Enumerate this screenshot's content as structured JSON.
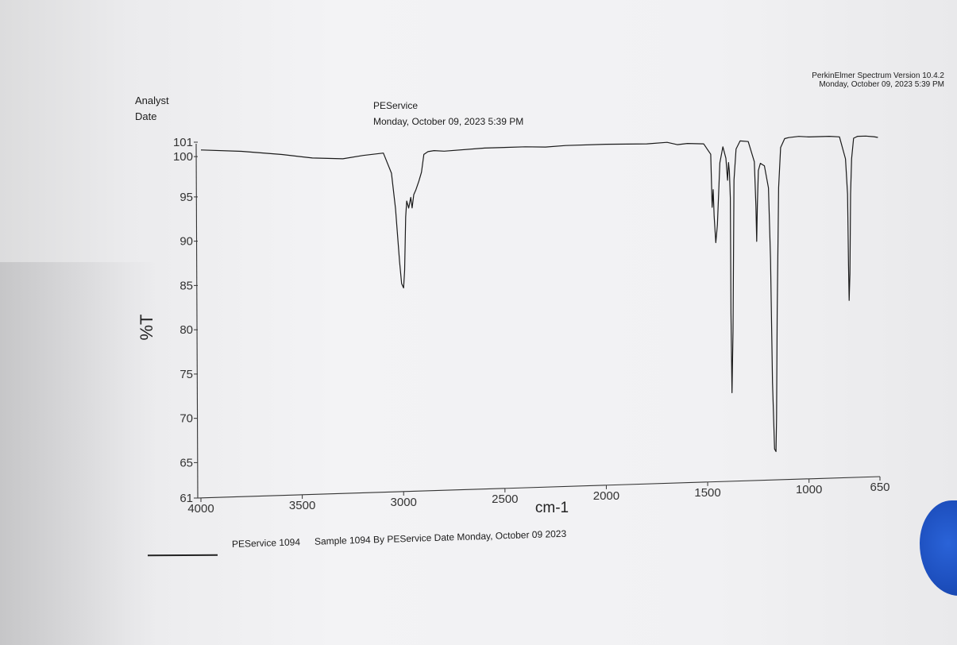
{
  "header": {
    "software": "PerkinElmer Spectrum Version 10.4.2",
    "software_date": "Monday, October 09, 2023 5:39 PM",
    "analyst_label": "Analyst",
    "date_label": "Date",
    "analyst_value": "PEService",
    "date_value": "Monday, October 09, 2023 5:39 PM"
  },
  "legend": {
    "name": "PEService 1094",
    "description": "Sample 1094 By PEService Date Monday, October 09 2023"
  },
  "chart_data": {
    "type": "line",
    "title": "",
    "xlabel": "cm-1",
    "ylabel": "%T",
    "xlim": [
      4000,
      650
    ],
    "ylim": [
      61,
      101
    ],
    "x_reversed": true,
    "grid": false,
    "legend_position": "bottom-left",
    "x_ticks": [
      4000,
      3500,
      3000,
      2500,
      2000,
      1500,
      1000,
      650
    ],
    "y_ticks": [
      61,
      65,
      70,
      75,
      80,
      85,
      90,
      95,
      100,
      101
    ],
    "series": [
      {
        "name": "PEService 1094",
        "color": "#1a1a1a",
        "x": [
          4000,
          3800,
          3600,
          3450,
          3300,
          3200,
          3100,
          3060,
          3040,
          3020,
          3010,
          3000,
          2995,
          2990,
          2985,
          2975,
          2965,
          2958,
          2950,
          2940,
          2925,
          2912,
          2900,
          2880,
          2850,
          2800,
          2600,
          2400,
          2300,
          2200,
          2000,
          1800,
          1700,
          1650,
          1600,
          1520,
          1485,
          1478,
          1473,
          1468,
          1460,
          1452,
          1440,
          1425,
          1410,
          1402,
          1397,
          1393,
          1388,
          1385,
          1380,
          1375,
          1370,
          1360,
          1340,
          1300,
          1270,
          1262,
          1258,
          1255,
          1250,
          1240,
          1220,
          1200,
          1190,
          1180,
          1170,
          1163,
          1160,
          1157,
          1150,
          1140,
          1120,
          1100,
          1050,
          1000,
          900,
          850,
          820,
          810,
          805,
          802,
          798,
          795,
          790,
          780,
          760,
          720,
          680,
          660
        ],
        "y": [
          100.3,
          100.0,
          99.5,
          99.0,
          98.8,
          99.1,
          99.3,
          97.0,
          93.0,
          87.0,
          84.5,
          84.0,
          86.0,
          92.0,
          93.8,
          93.0,
          94.2,
          93.0,
          94.5,
          95.0,
          96.0,
          97.0,
          99.0,
          99.3,
          99.4,
          99.3,
          99.5,
          99.5,
          99.4,
          99.5,
          99.5,
          99.4,
          99.5,
          99.2,
          99.3,
          99.2,
          98.0,
          92.0,
          94.0,
          91.0,
          88.0,
          90.0,
          97.0,
          98.8,
          97.5,
          95.0,
          97.0,
          96.0,
          93.0,
          80.0,
          71.0,
          78.0,
          95.0,
          98.5,
          99.4,
          99.3,
          97.0,
          92.0,
          88.0,
          92.0,
          96.0,
          96.8,
          96.5,
          94.0,
          86.0,
          72.0,
          64.5,
          64.2,
          68.0,
          80.0,
          94.0,
          98.5,
          99.5,
          99.6,
          99.7,
          99.6,
          99.6,
          99.5,
          97.0,
          93.0,
          85.0,
          81.0,
          84.0,
          93.0,
          97.0,
          99.3,
          99.5,
          99.5,
          99.4,
          99.3
        ]
      }
    ]
  }
}
